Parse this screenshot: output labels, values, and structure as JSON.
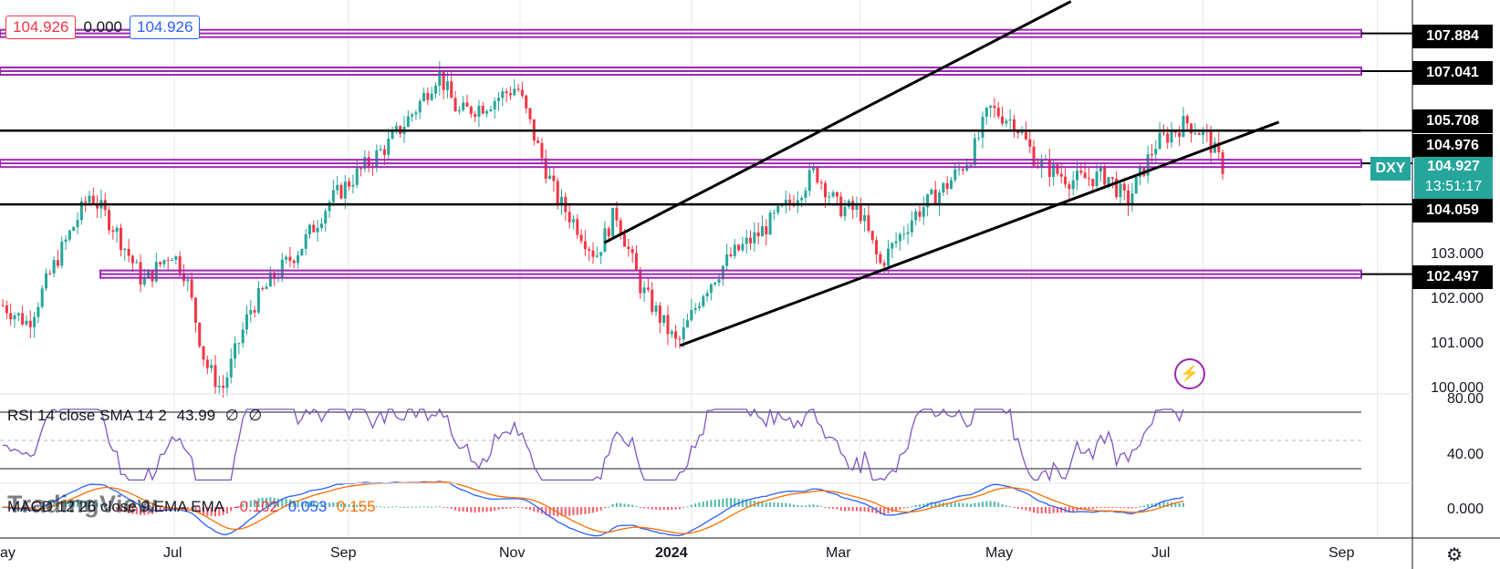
{
  "header": {
    "bid": "104.926",
    "spread": "0.000",
    "ask": "104.926"
  },
  "indicators": {
    "rsi_name": "RSI 14 close SMA 14 2",
    "rsi_value": "43.99",
    "rsi_extra1": "∅",
    "rsi_extra2": "∅",
    "macd_name": "MACD 12 26 close 9 EMA EMA",
    "macd_hist": "-0.102",
    "macd_line": "0.053",
    "macd_signal": "0.155"
  },
  "watermark": "TradingView",
  "symbol_tag": "DXY",
  "last_price": "104.927",
  "countdown": "13:51:17",
  "price_axis_levels": [
    "107.884",
    "107.041",
    "105.708",
    "104.976",
    "104.059",
    "102.497"
  ],
  "price_ticks": [
    "103.000",
    "102.000",
    "101.000",
    "100.000"
  ],
  "rsi_ticks": [
    "80.00",
    "40.00"
  ],
  "macd_ticks": [
    "0.000"
  ],
  "time_labels": [
    "ay",
    "Jul",
    "Sep",
    "Nov",
    "2024",
    "Mar",
    "May",
    "Jul",
    "Sep"
  ],
  "colors": {
    "up": "#26a69a",
    "down": "#f23645",
    "zone": "#9c27b0",
    "rsi": "#7e57c2",
    "macd": "#2962ff",
    "signal": "#ff6d00"
  },
  "chart_data": {
    "type": "candlestick",
    "symbol": "DXY",
    "xaxis_labels": [
      "ay",
      "Jul",
      "Sep",
      "Nov",
      "2024",
      "Mar",
      "May",
      "Jul",
      "Sep"
    ],
    "y_range": [
      100.0,
      108.6
    ],
    "horizontal_levels": [
      {
        "price": 107.884,
        "style": "purple-zone"
      },
      {
        "price": 107.041,
        "style": "purple-zone"
      },
      {
        "price": 105.708,
        "style": "black-line"
      },
      {
        "price": 104.976,
        "style": "purple-zone"
      },
      {
        "price": 104.059,
        "style": "black-line"
      },
      {
        "price": 102.497,
        "style": "purple-zone"
      }
    ],
    "close_path": [
      [
        "2023-05-01",
        101.8
      ],
      [
        "2023-05-10",
        101.4
      ],
      [
        "2023-05-20",
        102.8
      ],
      [
        "2023-06-01",
        104.3
      ],
      [
        "2023-06-10",
        103.5
      ],
      [
        "2023-06-20",
        102.3
      ],
      [
        "2023-06-30",
        103.0
      ],
      [
        "2023-07-05",
        102.5
      ],
      [
        "2023-07-12",
        100.5
      ],
      [
        "2023-07-18",
        99.9
      ],
      [
        "2023-07-28",
        101.7
      ],
      [
        "2023-08-05",
        102.4
      ],
      [
        "2023-08-15",
        103.1
      ],
      [
        "2023-08-25",
        104.1
      ],
      [
        "2023-09-05",
        104.8
      ],
      [
        "2023-09-15",
        105.4
      ],
      [
        "2023-09-25",
        106.2
      ],
      [
        "2023-10-03",
        107.0
      ],
      [
        "2023-10-10",
        106.1
      ],
      [
        "2023-10-20",
        106.3
      ],
      [
        "2023-10-31",
        106.7
      ],
      [
        "2023-11-07",
        105.4
      ],
      [
        "2023-11-14",
        104.2
      ],
      [
        "2023-11-21",
        103.6
      ],
      [
        "2023-11-28",
        102.9
      ],
      [
        "2023-12-05",
        103.9
      ],
      [
        "2023-12-14",
        102.2
      ],
      [
        "2023-12-27",
        100.9
      ],
      [
        "2024-01-05",
        102.1
      ],
      [
        "2024-01-15",
        102.9
      ],
      [
        "2024-01-25",
        103.4
      ],
      [
        "2024-02-05",
        104.1
      ],
      [
        "2024-02-14",
        104.8
      ],
      [
        "2024-02-22",
        104.0
      ],
      [
        "2024-03-01",
        103.9
      ],
      [
        "2024-03-08",
        102.7
      ],
      [
        "2024-03-20",
        103.8
      ],
      [
        "2024-04-01",
        104.5
      ],
      [
        "2024-04-10",
        105.2
      ],
      [
        "2024-04-16",
        106.2
      ],
      [
        "2024-04-25",
        105.9
      ],
      [
        "2024-05-03",
        105.0
      ],
      [
        "2024-05-15",
        104.6
      ],
      [
        "2024-05-28",
        104.7
      ],
      [
        "2024-06-04",
        104.1
      ],
      [
        "2024-06-14",
        105.4
      ],
      [
        "2024-06-25",
        105.9
      ],
      [
        "2024-07-02",
        105.6
      ],
      [
        "2024-07-08",
        104.9
      ]
    ],
    "rsi": {
      "period": 14,
      "last": 43.99,
      "levels": [
        80,
        40
      ]
    },
    "macd": {
      "fast": 12,
      "slow": 26,
      "signal": 9,
      "histogram": -0.102,
      "macd": 0.053,
      "signal_value": 0.155
    }
  }
}
